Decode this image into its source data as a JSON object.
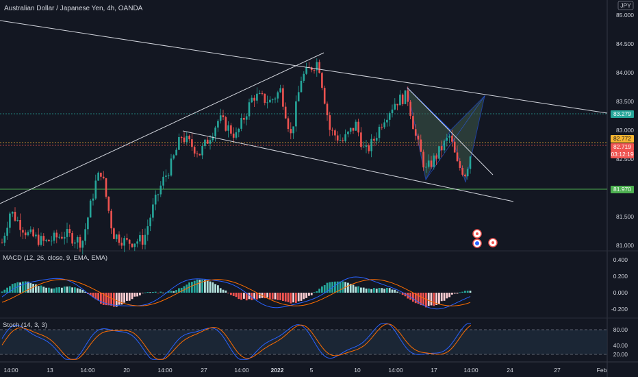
{
  "header": {
    "title": "Australian Dollar / Japanese Yen, 4h, OANDA",
    "currency": "JPY"
  },
  "chart_data": {
    "type": "candlestick",
    "title": "Australian Dollar / Japanese Yen, 4h, OANDA",
    "price_axis": {
      "ticks": [
        "85.000",
        "84.500",
        "84.000",
        "83.500",
        "83.000",
        "82.500",
        "81.500",
        "81.000"
      ],
      "range": [
        80.95,
        85.1
      ]
    },
    "price_labels": [
      {
        "value": "83.279",
        "color": "#26a69a"
      },
      {
        "value": "82.772",
        "color": "#f7b530"
      },
      {
        "value": "82.719",
        "color": "#ef5350"
      },
      {
        "value": "03:12:19",
        "color": "#ef5350"
      },
      {
        "value": "81.970",
        "color": "#4caf50"
      }
    ],
    "time_axis": [
      "14:00",
      "13",
      "14:00",
      "20",
      "14:00",
      "27",
      "14:00",
      "2022",
      "5",
      "10",
      "14:00",
      "17",
      "14:00",
      "24",
      "27",
      "Feb"
    ],
    "macd": {
      "label": "MACD (12, 26, close, 9, EMA, EMA)",
      "ticks": [
        "0.400",
        "0.200",
        "0.000",
        "-0.200"
      ],
      "range": [
        -0.28,
        0.45
      ]
    },
    "stoch": {
      "label": "Stoch (14, 3, 3)",
      "ticks": [
        "80.00",
        "40.00",
        "20.00"
      ],
      "upper": 80,
      "lower": 20,
      "range": [
        10,
        95
      ]
    },
    "colors": {
      "up": "#26a69a",
      "down": "#ef5350",
      "macd_line": "#2962ff",
      "signal_line": "#ff6d00",
      "background": "#131722"
    }
  }
}
